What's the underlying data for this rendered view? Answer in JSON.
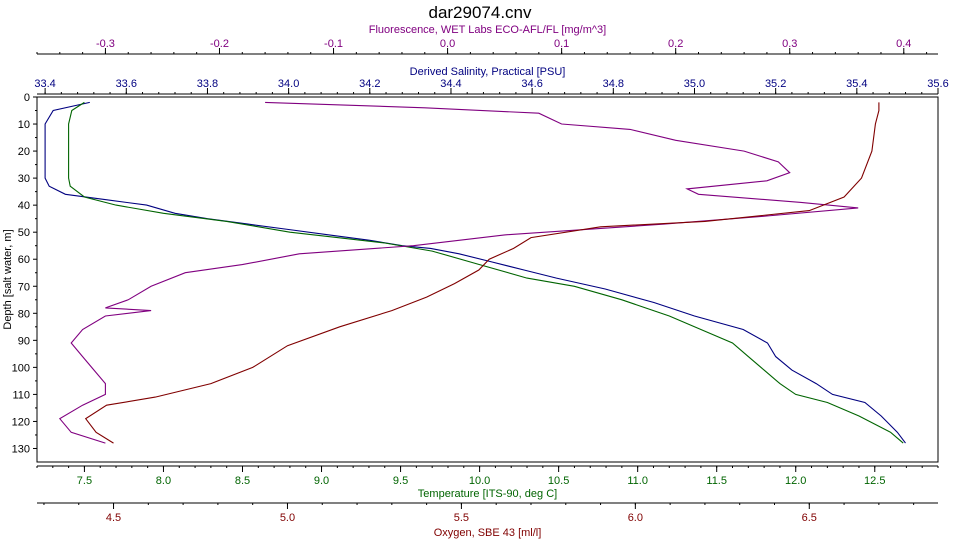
{
  "chart_data": {
    "type": "line",
    "title": "dar29074.cnv",
    "grid": false,
    "legend": "none",
    "y_axis": {
      "label": "Depth [salt water, m]",
      "range": [
        0,
        135
      ],
      "ticks": [
        0,
        10,
        20,
        30,
        40,
        50,
        60,
        70,
        80,
        90,
        100,
        110,
        120,
        130
      ],
      "tick_labels": [
        "0",
        "10",
        "20",
        "30",
        "40",
        "50",
        "60",
        "70",
        "80",
        "90",
        "100",
        "110",
        "120",
        "130"
      ],
      "inverted": true,
      "color": "#000000"
    },
    "x_axes": [
      {
        "id": "fluorescence",
        "label": "Fluorescence, WET Labs ECO-AFL/FL [mg/m^3]",
        "position": "top-outer",
        "range": [
          -0.36,
          0.43
        ],
        "ticks": [
          -0.3,
          -0.2,
          -0.1,
          0.0,
          0.1,
          0.2,
          0.3,
          0.4
        ],
        "tick_labels": [
          "-0.3",
          "-0.2",
          "-0.1",
          "0.0",
          "0.1",
          "0.2",
          "0.3",
          "0.4"
        ],
        "color": "#800080"
      },
      {
        "id": "salinity",
        "label": "Derived Salinity, Practical [PSU]",
        "position": "top-inner",
        "range": [
          33.38,
          35.6
        ],
        "ticks": [
          33.4,
          33.6,
          33.8,
          34.0,
          34.2,
          34.4,
          34.6,
          34.8,
          35.0,
          35.2,
          35.4,
          35.6
        ],
        "tick_labels": [
          "33.4",
          "33.6",
          "33.8",
          "34.0",
          "34.2",
          "34.4",
          "34.6",
          "34.8",
          "35.0",
          "35.2",
          "35.4",
          "35.6"
        ],
        "color": "#000080"
      },
      {
        "id": "temperature",
        "label": "Temperature [ITS-90, deg C]",
        "position": "bottom-inner",
        "range": [
          7.2,
          12.9
        ],
        "ticks": [
          7.5,
          8.0,
          8.5,
          9.0,
          9.5,
          10.0,
          10.5,
          11.0,
          11.5,
          12.0,
          12.5
        ],
        "tick_labels": [
          "7.5",
          "8.0",
          "8.5",
          "9.0",
          "9.5",
          "10.0",
          "10.5",
          "11.0",
          "11.5",
          "12.0",
          "12.5"
        ],
        "color": "#006400"
      },
      {
        "id": "oxygen",
        "label": "Oxygen, SBE 43 [ml/l]",
        "position": "bottom-outer",
        "range": [
          4.28,
          6.87
        ],
        "ticks": [
          4.5,
          5.0,
          5.5,
          6.0,
          6.5
        ],
        "tick_labels": [
          "4.5",
          "5.0",
          "5.5",
          "6.0",
          "6.5"
        ],
        "color": "#800000"
      }
    ],
    "series": [
      {
        "axis": "salinity",
        "color": "#000080",
        "points": [
          [
            33.51,
            2
          ],
          [
            33.42,
            5
          ],
          [
            33.4,
            10
          ],
          [
            33.4,
            20
          ],
          [
            33.4,
            30
          ],
          [
            33.41,
            33
          ],
          [
            33.45,
            36
          ],
          [
            33.55,
            38
          ],
          [
            33.65,
            40
          ],
          [
            33.72,
            43
          ],
          [
            33.8,
            45
          ],
          [
            33.9,
            47
          ],
          [
            34.0,
            49
          ],
          [
            34.1,
            51
          ],
          [
            34.2,
            53
          ],
          [
            34.28,
            55
          ],
          [
            34.35,
            56
          ],
          [
            34.42,
            58
          ],
          [
            34.5,
            61
          ],
          [
            34.58,
            64
          ],
          [
            34.66,
            67
          ],
          [
            34.78,
            71
          ],
          [
            34.9,
            76
          ],
          [
            35.0,
            81
          ],
          [
            35.12,
            86
          ],
          [
            35.18,
            91
          ],
          [
            35.2,
            96
          ],
          [
            35.24,
            101
          ],
          [
            35.3,
            106
          ],
          [
            35.34,
            110
          ],
          [
            35.42,
            113
          ],
          [
            35.46,
            118
          ],
          [
            35.5,
            124
          ],
          [
            35.52,
            128
          ]
        ]
      },
      {
        "axis": "temperature",
        "color": "#006400",
        "points": [
          [
            7.5,
            2
          ],
          [
            7.42,
            5
          ],
          [
            7.4,
            10
          ],
          [
            7.4,
            20
          ],
          [
            7.4,
            30
          ],
          [
            7.41,
            33
          ],
          [
            7.5,
            37
          ],
          [
            7.7,
            40
          ],
          [
            8.0,
            43
          ],
          [
            8.4,
            46
          ],
          [
            8.8,
            50
          ],
          [
            9.1,
            52
          ],
          [
            9.4,
            54
          ],
          [
            9.7,
            57
          ],
          [
            10.0,
            62
          ],
          [
            10.3,
            67
          ],
          [
            10.6,
            70
          ],
          [
            10.9,
            75
          ],
          [
            11.2,
            81
          ],
          [
            11.4,
            86
          ],
          [
            11.6,
            91
          ],
          [
            11.7,
            96
          ],
          [
            11.8,
            101
          ],
          [
            11.9,
            106
          ],
          [
            12.0,
            110
          ],
          [
            12.2,
            113
          ],
          [
            12.4,
            118
          ],
          [
            12.6,
            124
          ],
          [
            12.68,
            128
          ]
        ]
      },
      {
        "axis": "fluorescence",
        "color": "#800080",
        "points": [
          [
            -0.16,
            2
          ],
          [
            -0.02,
            4
          ],
          [
            0.08,
            6
          ],
          [
            0.1,
            10
          ],
          [
            0.16,
            12
          ],
          [
            0.2,
            16
          ],
          [
            0.26,
            20
          ],
          [
            0.29,
            24
          ],
          [
            0.3,
            28
          ],
          [
            0.28,
            31
          ],
          [
            0.21,
            34
          ],
          [
            0.22,
            36
          ],
          [
            0.31,
            39
          ],
          [
            0.36,
            41
          ],
          [
            0.28,
            44
          ],
          [
            0.19,
            47
          ],
          [
            0.05,
            51
          ],
          [
            -0.03,
            55
          ],
          [
            -0.13,
            58
          ],
          [
            -0.18,
            62
          ],
          [
            -0.23,
            65
          ],
          [
            -0.26,
            70
          ],
          [
            -0.28,
            75
          ],
          [
            -0.3,
            78
          ],
          [
            -0.26,
            79
          ],
          [
            -0.3,
            81
          ],
          [
            -0.32,
            86
          ],
          [
            -0.33,
            91
          ],
          [
            -0.32,
            96
          ],
          [
            -0.31,
            101
          ],
          [
            -0.3,
            106
          ],
          [
            -0.3,
            110
          ],
          [
            -0.32,
            114
          ],
          [
            -0.34,
            119
          ],
          [
            -0.33,
            124
          ],
          [
            -0.3,
            128
          ]
        ]
      },
      {
        "axis": "oxygen",
        "color": "#800000",
        "points": [
          [
            6.7,
            2
          ],
          [
            6.7,
            5
          ],
          [
            6.69,
            10
          ],
          [
            6.68,
            20
          ],
          [
            6.65,
            30
          ],
          [
            6.6,
            37
          ],
          [
            6.5,
            42
          ],
          [
            6.2,
            46
          ],
          [
            5.9,
            48
          ],
          [
            5.7,
            52
          ],
          [
            5.65,
            56
          ],
          [
            5.58,
            60
          ],
          [
            5.55,
            64
          ],
          [
            5.48,
            69
          ],
          [
            5.4,
            74
          ],
          [
            5.3,
            79
          ],
          [
            5.15,
            85
          ],
          [
            5.0,
            92
          ],
          [
            4.9,
            100
          ],
          [
            4.78,
            106
          ],
          [
            4.62,
            111
          ],
          [
            4.48,
            114
          ],
          [
            4.42,
            119
          ],
          [
            4.45,
            124
          ],
          [
            4.5,
            128
          ]
        ]
      }
    ]
  }
}
